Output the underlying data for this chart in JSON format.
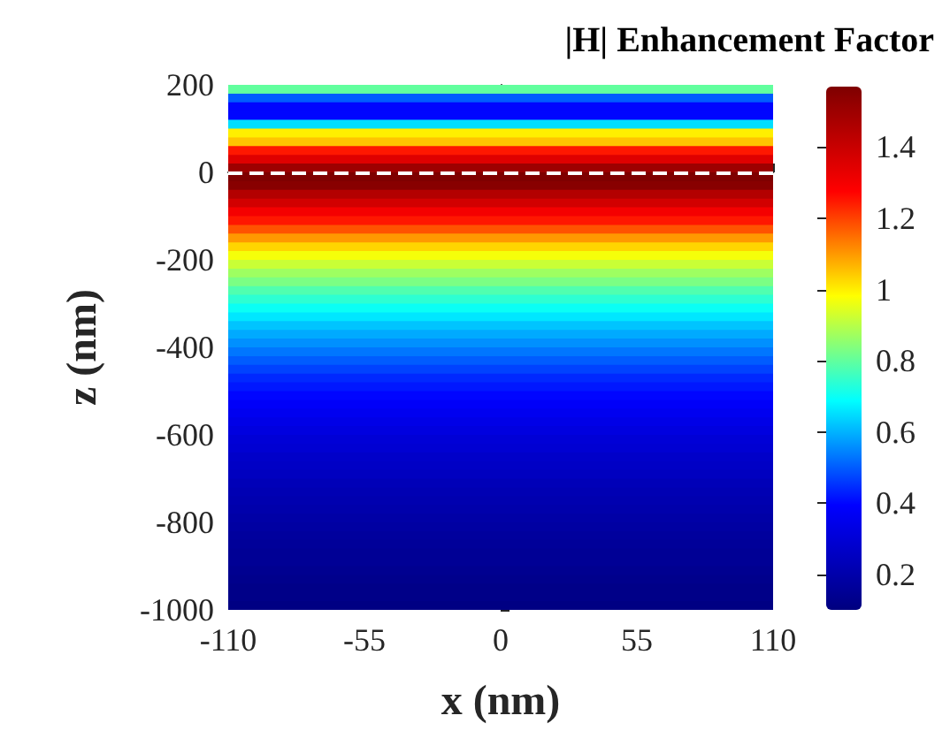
{
  "chart_data": {
    "type": "heatmap",
    "title": "|H| Enhancement Factor",
    "xlabel": "x (nm)",
    "ylabel": "z (nm)",
    "xlim": [
      -110,
      110
    ],
    "xticks": [
      -110,
      -55,
      0,
      55,
      110
    ],
    "ylim": [
      -1000,
      200
    ],
    "yticks": [
      -1000,
      -800,
      -600,
      -400,
      -200,
      0,
      200
    ],
    "clim": [
      0.1,
      1.57
    ],
    "cticks": [
      0.2,
      0.4,
      0.6,
      0.8,
      1,
      1.2,
      1.4
    ],
    "cells": [
      [
        0.8
      ],
      [
        0.5
      ],
      [
        0.4
      ],
      [
        0.4
      ],
      [
        0.65
      ],
      [
        1.0
      ],
      [
        1.05
      ],
      [
        1.25
      ],
      [
        1.35
      ],
      [
        1.5
      ],
      [
        1.57
      ],
      [
        1.55
      ],
      [
        1.45
      ],
      [
        1.38
      ],
      [
        1.3
      ],
      [
        1.25
      ],
      [
        1.18
      ],
      [
        1.1
      ],
      [
        1.03
      ],
      [
        0.97
      ],
      [
        0.92
      ],
      [
        0.87
      ],
      [
        0.83
      ],
      [
        0.78
      ],
      [
        0.74
      ],
      [
        0.7
      ],
      [
        0.66
      ],
      [
        0.62
      ],
      [
        0.59
      ],
      [
        0.56
      ],
      [
        0.53
      ],
      [
        0.5
      ],
      [
        0.47
      ],
      [
        0.44
      ],
      [
        0.42
      ],
      [
        0.4
      ],
      [
        0.38
      ],
      [
        0.36
      ],
      [
        0.34
      ],
      [
        0.32
      ],
      [
        0.3
      ],
      [
        0.29
      ],
      [
        0.27
      ],
      [
        0.26
      ],
      [
        0.25
      ],
      [
        0.23
      ],
      [
        0.22
      ],
      [
        0.21
      ],
      [
        0.2
      ],
      [
        0.19
      ],
      [
        0.18
      ],
      [
        0.17
      ],
      [
        0.16
      ],
      [
        0.15
      ],
      [
        0.15
      ],
      [
        0.14
      ],
      [
        0.13
      ],
      [
        0.12
      ],
      [
        0.12
      ],
      [
        0.11
      ]
    ],
    "ref_lines": [
      {
        "axis": "y",
        "value": 0,
        "color": "#ffffff",
        "line_style": "dashed"
      }
    ]
  }
}
